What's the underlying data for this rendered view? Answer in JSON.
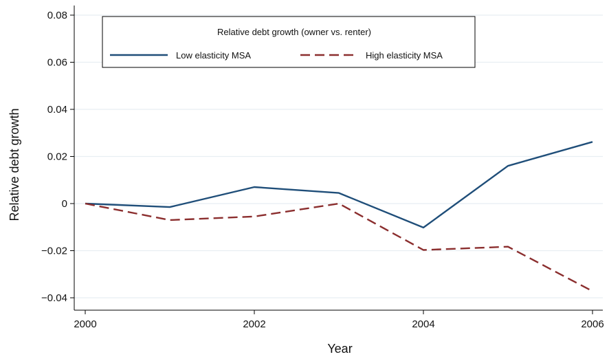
{
  "chart_data": {
    "type": "line",
    "legend_title": "Relative debt growth (owner vs. renter)",
    "xlabel": "Year",
    "ylabel": "Relative debt growth",
    "x": [
      2000,
      2001,
      2002,
      2003,
      2004,
      2005,
      2006
    ],
    "xlim": [
      2000,
      2006
    ],
    "ylim": [
      -0.04,
      0.08
    ],
    "x_ticks": [
      2000,
      2002,
      2004,
      2006
    ],
    "x_tick_labels": [
      "2000",
      "2002",
      "2004",
      "2006"
    ],
    "y_ticks": [
      -0.04,
      -0.02,
      0,
      0.02,
      0.04,
      0.06,
      0.08
    ],
    "y_tick_labels": [
      "−0.04",
      "−0.02",
      "0",
      "0.02",
      "0.04",
      "0.06",
      "0.08"
    ],
    "grid": true,
    "legend_position": "top-left",
    "series": [
      {
        "name": "Low elasticity MSA",
        "values": [
          0,
          -0.0015,
          0.007,
          0.0045,
          -0.0102,
          0.016,
          0.0262
        ],
        "color": "#1f4e79",
        "dash": "solid"
      },
      {
        "name": "High elasticity MSA",
        "values": [
          0,
          -0.007,
          -0.0055,
          0,
          -0.0197,
          -0.0183,
          -0.0372
        ],
        "color": "#8b2e2e",
        "dash": "dashed"
      }
    ]
  }
}
